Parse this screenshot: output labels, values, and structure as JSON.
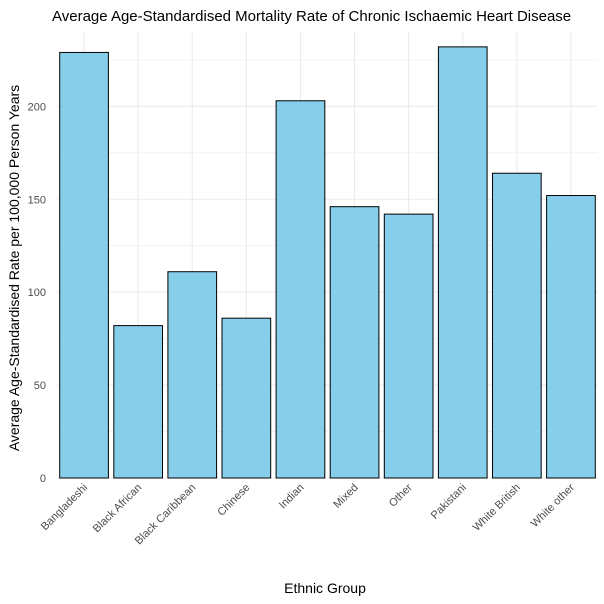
{
  "chart_data": {
    "type": "bar",
    "title": "Average Age-Standardised Mortality Rate of Chronic Ischaemic Heart Disease",
    "xlabel": "Ethnic Group",
    "ylabel": "Average Age-Standardised Rate per 100,000 Person Years",
    "categories": [
      "Bangladeshi",
      "Black African",
      "Black Caribbean",
      "Chinese",
      "Indian",
      "Mixed",
      "Other",
      "Pakistani",
      "White British",
      "White other"
    ],
    "values": [
      229,
      82,
      111,
      86,
      203,
      146,
      142,
      232,
      164,
      152
    ],
    "ylim": [
      0,
      240
    ],
    "yticks": [
      0,
      50,
      100,
      150,
      200
    ],
    "grid": true,
    "colors": {
      "bar_fill": "#87CEEB",
      "bar_stroke": "#000000",
      "grid": "#ebebeb",
      "background": "#ffffff"
    }
  }
}
